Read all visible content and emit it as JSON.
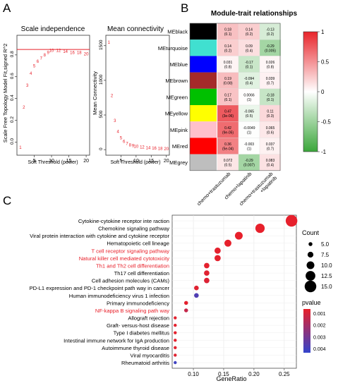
{
  "panels": {
    "a": "A",
    "b": "B",
    "c": "C"
  },
  "chart_data": [
    {
      "id": "scale-independence",
      "type": "scatter",
      "title": "Scale independence",
      "xlabel": "Soft Threshold (power)",
      "ylabel": "Scale Free Topology Model Fit,signed R^2",
      "xlim": [
        0,
        21
      ],
      "ylim": [
        -0.12,
        0.98
      ],
      "xticks": [
        5,
        10,
        15,
        20
      ],
      "yticks": [
        0.0,
        0.2,
        0.4,
        0.6,
        0.8
      ],
      "reference_line": 0.85,
      "point_labels": [
        "1",
        "2",
        "3",
        "4",
        "5",
        "6",
        "7",
        "8",
        "9",
        "10",
        "12",
        "14",
        "16",
        "18",
        "20"
      ],
      "x": [
        1,
        2,
        3,
        4,
        5,
        6,
        7,
        8,
        9,
        10,
        12,
        14,
        16,
        18,
        20
      ],
      "y": [
        -0.05,
        0.32,
        0.52,
        0.63,
        0.7,
        0.74,
        0.77,
        0.8,
        0.82,
        0.84,
        0.84,
        0.83,
        0.82,
        0.82,
        0.81
      ]
    },
    {
      "id": "mean-connectivity",
      "type": "scatter",
      "title": "Mean connectivity",
      "xlabel": "Soft Threshold (power)",
      "ylabel": "Mean Connectivity",
      "xlim": [
        0,
        21
      ],
      "ylim": [
        -80,
        1650
      ],
      "xticks": [
        5,
        10,
        15,
        20
      ],
      "yticks": [
        0,
        500,
        1000,
        1500
      ],
      "point_labels": [
        "1",
        "2",
        "3",
        "4",
        "5",
        "6",
        "7",
        "8",
        "9",
        "10",
        "12",
        "14",
        "16",
        "18",
        "20"
      ],
      "x": [
        1,
        2,
        3,
        4,
        5,
        6,
        7,
        8,
        9,
        10,
        12,
        14,
        16,
        18,
        20
      ],
      "y": [
        1550,
        780,
        420,
        260,
        170,
        120,
        90,
        70,
        55,
        45,
        35,
        25,
        20,
        15,
        12
      ]
    },
    {
      "id": "module-trait",
      "type": "heatmap",
      "title": "Module-trait relationships",
      "rows": [
        "MEblack",
        "MEturquoise",
        "MEblue",
        "MEbrown",
        "MEgreen",
        "MEyellow",
        "MEpink",
        "MEred",
        "MEgrey"
      ],
      "row_colors": [
        "#000000",
        "#40e0d0",
        "#0000ff",
        "#a52a2a",
        "#00c000",
        "#ffff00",
        "#ffc0cb",
        "#ff0000",
        "#bebebe"
      ],
      "columns": [
        "chemo+trastuzumab",
        "chemo+lapatinib",
        "chemo+trastuzumab\n+lapatinib"
      ],
      "values": [
        [
          0.18,
          0.14,
          -0.13
        ],
        [
          0.14,
          0.09,
          -0.29
        ],
        [
          0.031,
          -0.17,
          0.026
        ],
        [
          0.19,
          -0.094,
          0.039
        ],
        [
          0.17,
          0.0066,
          -0.18
        ],
        [
          0.47,
          -0.065,
          0.11
        ],
        [
          0.42,
          -0.0049,
          0.065
        ],
        [
          0.36,
          -0.003,
          0.037
        ],
        [
          0.072,
          -0.29,
          0.083
        ]
      ],
      "pvalues": [
        [
          "(0.1)",
          "(0.2)",
          "(0.2)"
        ],
        [
          "(0.2)",
          "(0.4)",
          "(0.005)"
        ],
        [
          "(0.8)",
          "(0.1)",
          "(0.8)"
        ],
        [
          "(0.08)",
          "(0.4)",
          "(0.7)"
        ],
        [
          "(0.1)",
          "(1)",
          "(0.1)"
        ],
        [
          "(3e-06)",
          "(0.5)",
          "(0.3)"
        ],
        [
          "(9e-05)",
          "(1)",
          "(0.6)"
        ],
        [
          "(5e-04)",
          "(1)",
          "(0.7)"
        ],
        [
          "(0.5)",
          "(0.007)",
          "(0.4)"
        ]
      ],
      "labels": [
        [
          "0.18",
          "0.14",
          "-0.13"
        ],
        [
          "0.14",
          "0.09",
          "-0.29"
        ],
        [
          "0.031",
          "-0.17",
          "0.026"
        ],
        [
          "0.19",
          "-0.094",
          "0.039"
        ],
        [
          "0.17",
          "0.0066",
          "-0.18"
        ],
        [
          "0.47",
          "-0.065",
          "0.11"
        ],
        [
          "0.42",
          "-0.0049",
          "0.065"
        ],
        [
          "0.36",
          "-0.003",
          "0.037"
        ],
        [
          "0.072",
          "-0.29",
          "0.083"
        ]
      ],
      "colorbar": {
        "ticks": [
          "1",
          "0.5",
          "0",
          "-0.5",
          "-1"
        ],
        "high": "#e8242a",
        "mid": "#ffffff",
        "low": "#3aa63a"
      }
    },
    {
      "id": "kegg-dotplot",
      "type": "scatter",
      "xlabel": "GeneRatio",
      "xlim": [
        0.065,
        0.27
      ],
      "xticks": [
        0.1,
        0.15,
        0.2,
        0.25
      ],
      "xtick_labels": [
        "0.10",
        "0.15",
        "0.20",
        "0.25"
      ],
      "highlight_color": "#e8202a",
      "terms": [
        {
          "label": "Cytokine-cytokine receptor inte raction",
          "gene_ratio": 0.262,
          "count": 15,
          "pvalue": 5e-05,
          "highlight": false
        },
        {
          "label": "Chemokine signaling pathway",
          "gene_ratio": 0.21,
          "count": 12,
          "pvalue": 2e-05,
          "highlight": false
        },
        {
          "label": "Viral protein interaction with cytokine and cytokine receptor",
          "gene_ratio": 0.175,
          "count": 10,
          "pvalue": 3e-05,
          "highlight": false
        },
        {
          "label": "Hematopoietic cell lineage",
          "gene_ratio": 0.157,
          "count": 9,
          "pvalue": 4e-05,
          "highlight": false
        },
        {
          "label": "T cell receptor signaling pathway",
          "gene_ratio": 0.14,
          "count": 8,
          "pvalue": 0.0001,
          "highlight": true
        },
        {
          "label": "Natural killer cell mediated cytotoxicity",
          "gene_ratio": 0.14,
          "count": 8,
          "pvalue": 0.0001,
          "highlight": true
        },
        {
          "label": "Th1 and Th2 cell differentiation",
          "gene_ratio": 0.122,
          "count": 7,
          "pvalue": 0.0001,
          "highlight": true
        },
        {
          "label": "Th17 cell differentiation",
          "gene_ratio": 0.122,
          "count": 7,
          "pvalue": 0.0002,
          "highlight": false
        },
        {
          "label": "Cell adhesion molecules (CAMs)",
          "gene_ratio": 0.122,
          "count": 7,
          "pvalue": 0.0003,
          "highlight": false
        },
        {
          "label": "PD-L1  expression and PD-1 checkpoint path way in cancer",
          "gene_ratio": 0.105,
          "count": 6,
          "pvalue": 0.0002,
          "highlight": false
        },
        {
          "label": "Human immunodeficiency virus 1 infection",
          "gene_ratio": 0.105,
          "count": 6,
          "pvalue": 0.0038,
          "highlight": false
        },
        {
          "label": "Primary immunodeficiency",
          "gene_ratio": 0.088,
          "count": 5,
          "pvalue": 0.0001,
          "highlight": false
        },
        {
          "label": "NF-kappa B signaling path way",
          "gene_ratio": 0.088,
          "count": 5,
          "pvalue": 0.0009,
          "highlight": true
        },
        {
          "label": "Allograft rejection",
          "gene_ratio": 0.07,
          "count": 4,
          "pvalue": 0.0001,
          "highlight": false
        },
        {
          "label": "Graft- versus-host disease",
          "gene_ratio": 0.07,
          "count": 4,
          "pvalue": 0.0001,
          "highlight": false
        },
        {
          "label": "Type I diabetes mellitus",
          "gene_ratio": 0.07,
          "count": 4,
          "pvalue": 0.0001,
          "highlight": false
        },
        {
          "label": "Intestinal immune network for IgA production",
          "gene_ratio": 0.07,
          "count": 4,
          "pvalue": 0.0001,
          "highlight": false
        },
        {
          "label": "Autoimmune thyroid disease",
          "gene_ratio": 0.07,
          "count": 4,
          "pvalue": 0.0001,
          "highlight": false
        },
        {
          "label": "Viral myocarditis",
          "gene_ratio": 0.07,
          "count": 4,
          "pvalue": 0.0002,
          "highlight": false
        },
        {
          "label": "Rheumatoid arthritis",
          "gene_ratio": 0.07,
          "count": 4,
          "pvalue": 0.0042,
          "highlight": false
        }
      ],
      "count_legend": {
        "title": "Count",
        "values": [
          5,
          7.5,
          10,
          12.5,
          15
        ],
        "labels": [
          "5.0",
          "7.5",
          "10.0",
          "12.5",
          "15.0"
        ]
      },
      "pvalue_legend": {
        "title": "pvalue",
        "ticks": [
          0.001,
          0.002,
          0.003,
          0.004
        ],
        "labels": [
          "0.001",
          "0.002",
          "0.003",
          "0.004"
        ],
        "high": "#e8202a",
        "low": "#3344cc"
      }
    }
  ]
}
